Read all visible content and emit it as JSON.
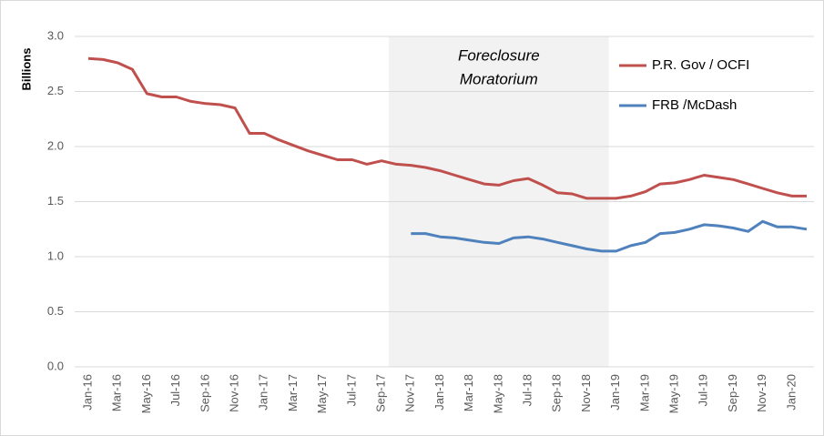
{
  "chart_data": {
    "type": "line",
    "y_label": "Billions",
    "annotation": [
      "Foreclosure",
      "Moratorium"
    ],
    "categories": [
      "Jan-16",
      null,
      "Mar-16",
      null,
      "May-16",
      null,
      "Jul-16",
      null,
      "Sep-16",
      null,
      "Nov-16",
      null,
      "Jan-17",
      null,
      "Mar-17",
      null,
      "May-17",
      null,
      "Jul-17",
      null,
      "Sep-17",
      null,
      "Nov-17",
      null,
      "Jan-18",
      null,
      "Mar-18",
      null,
      "May-18",
      null,
      "Jul-18",
      null,
      "Sep-18",
      null,
      "Nov-18",
      null,
      "Jan-19",
      null,
      "Mar-19",
      null,
      "May-19",
      null,
      "Jul-19",
      null,
      "Sep-19",
      null,
      "Nov-19",
      null,
      "Jan-20",
      null
    ],
    "series": [
      {
        "name": "P.R. Gov / OCFI",
        "color": "#c0504d",
        "values": [
          2.8,
          2.79,
          2.76,
          2.7,
          2.48,
          2.45,
          2.45,
          2.41,
          2.39,
          2.38,
          2.35,
          2.12,
          2.12,
          2.06,
          2.01,
          1.96,
          1.92,
          1.88,
          1.88,
          1.84,
          1.87,
          1.84,
          1.83,
          1.81,
          1.78,
          1.74,
          1.7,
          1.66,
          1.65,
          1.69,
          1.71,
          1.65,
          1.58,
          1.57,
          1.53,
          1.53,
          1.53,
          1.55,
          1.59,
          1.66,
          1.67,
          1.7,
          1.74,
          1.72,
          1.7,
          1.66,
          1.62,
          1.58,
          1.55,
          1.55
        ]
      },
      {
        "name": "FRB /McDash",
        "color": "#4f81bd",
        "values": [
          null,
          null,
          null,
          null,
          null,
          null,
          null,
          null,
          null,
          null,
          null,
          null,
          null,
          null,
          null,
          null,
          null,
          null,
          null,
          null,
          null,
          null,
          1.21,
          1.21,
          1.18,
          1.17,
          1.15,
          1.13,
          1.12,
          1.17,
          1.18,
          1.16,
          1.13,
          1.1,
          1.07,
          1.05,
          1.05,
          1.1,
          1.13,
          1.21,
          1.22,
          1.25,
          1.29,
          1.28,
          1.26,
          1.23,
          1.32,
          1.27,
          1.27,
          1.25
        ]
      }
    ],
    "ylim": [
      0,
      3
    ],
    "yticks": [
      {
        "value": 0,
        "label": "0.0"
      },
      0.5,
      {
        "value": 1,
        "label": "1.0"
      },
      1.5,
      {
        "value": 2,
        "label": "2.0"
      },
      2.5,
      {
        "value": 3,
        "label": "3.0"
      }
    ],
    "grid": true,
    "legend": "top-right"
  }
}
